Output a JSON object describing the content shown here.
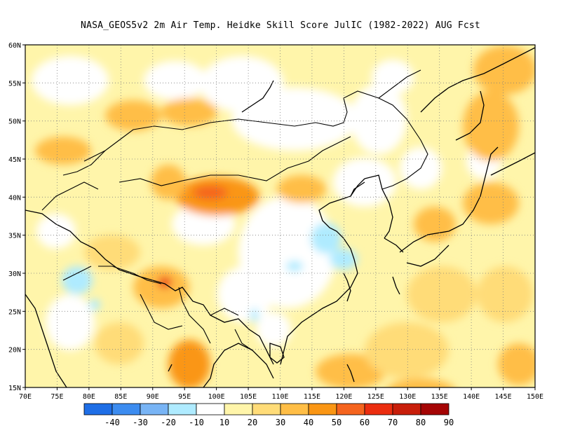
{
  "title": "NASA_GEOS5v2  2m Air Temp. Heidke Skill Score JulIC (1982-2022) AUG Fcst",
  "map": {
    "lon_range": [
      70,
      150
    ],
    "lat_range": [
      15,
      60
    ],
    "lon_ticks": [
      "70E",
      "75E",
      "80E",
      "85E",
      "90E",
      "95E",
      "100E",
      "105E",
      "110E",
      "115E",
      "120E",
      "125E",
      "130E",
      "135E",
      "140E",
      "145E",
      "150E"
    ],
    "lat_ticks": [
      "15N",
      "20N",
      "25N",
      "30N",
      "35N",
      "40N",
      "45N",
      "50N",
      "55N",
      "60N"
    ],
    "gridlines": "dotted",
    "coastlines": true,
    "field": "2m Air Temp Heidke Skill Score"
  },
  "colorbar": {
    "labels": [
      "-40",
      "-30",
      "-20",
      "-10",
      "10",
      "20",
      "30",
      "40",
      "50",
      "60",
      "70",
      "80",
      "90"
    ],
    "colors": [
      "#1e6ee6",
      "#3c8cf0",
      "#78b4f5",
      "#afebff",
      "#ffffff",
      "#fff5aa",
      "#ffdc78",
      "#ffbe46",
      "#fa9614",
      "#f5641e",
      "#eb2d0f",
      "#c81e0a",
      "#a50505"
    ]
  }
}
